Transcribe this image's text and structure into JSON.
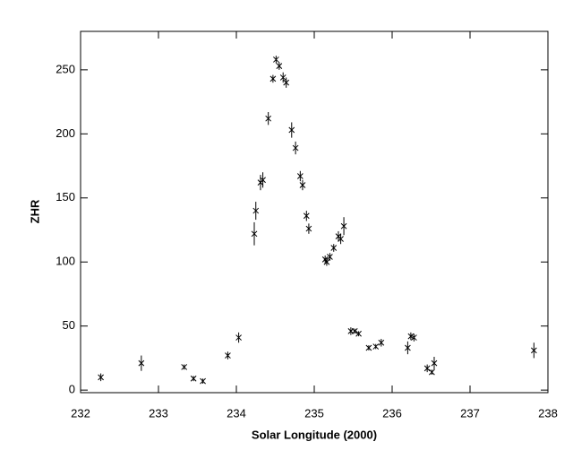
{
  "chart_data": {
    "type": "scatter",
    "xlabel": "Solar Longitude (2000)",
    "ylabel": "ZHR",
    "x": [
      232.26,
      232.78,
      233.33,
      233.45,
      233.57,
      233.89,
      234.03,
      234.23,
      234.25,
      234.31,
      234.34,
      234.41,
      234.47,
      234.51,
      234.55,
      234.6,
      234.64,
      234.71,
      234.76,
      234.82,
      234.85,
      234.9,
      234.93,
      235.14,
      235.16,
      235.2,
      235.25,
      235.31,
      235.34,
      235.38,
      235.47,
      235.52,
      235.57,
      235.7,
      235.79,
      235.86,
      236.2,
      236.24,
      236.28,
      236.45,
      236.51,
      236.54,
      237.82
    ],
    "y": [
      10,
      21,
      18,
      9,
      7,
      27,
      41,
      122,
      140,
      162,
      164,
      212,
      243,
      258,
      253,
      244,
      240,
      203,
      189,
      167,
      160,
      136,
      126,
      102,
      100,
      104,
      111,
      120,
      118,
      128,
      46,
      46,
      44,
      33,
      34,
      37,
      33,
      42,
      41,
      17,
      14,
      21,
      31
    ],
    "errors": [
      3,
      6,
      2,
      2,
      2,
      3,
      4,
      9,
      7,
      6,
      6,
      5,
      3,
      3,
      3,
      4,
      4,
      6,
      5,
      4,
      4,
      4,
      4,
      3,
      3,
      3,
      3,
      4,
      4,
      7,
      3,
      2,
      2,
      2,
      2,
      3,
      5,
      3,
      3,
      3,
      2,
      5,
      6
    ],
    "color": "#000000",
    "xlim": [
      232,
      238
    ],
    "ylim": [
      -2,
      280
    ],
    "xticks": [
      232,
      233,
      234,
      235,
      236,
      237,
      238
    ],
    "yticks": [
      0,
      50,
      100,
      150,
      200,
      250
    ]
  }
}
